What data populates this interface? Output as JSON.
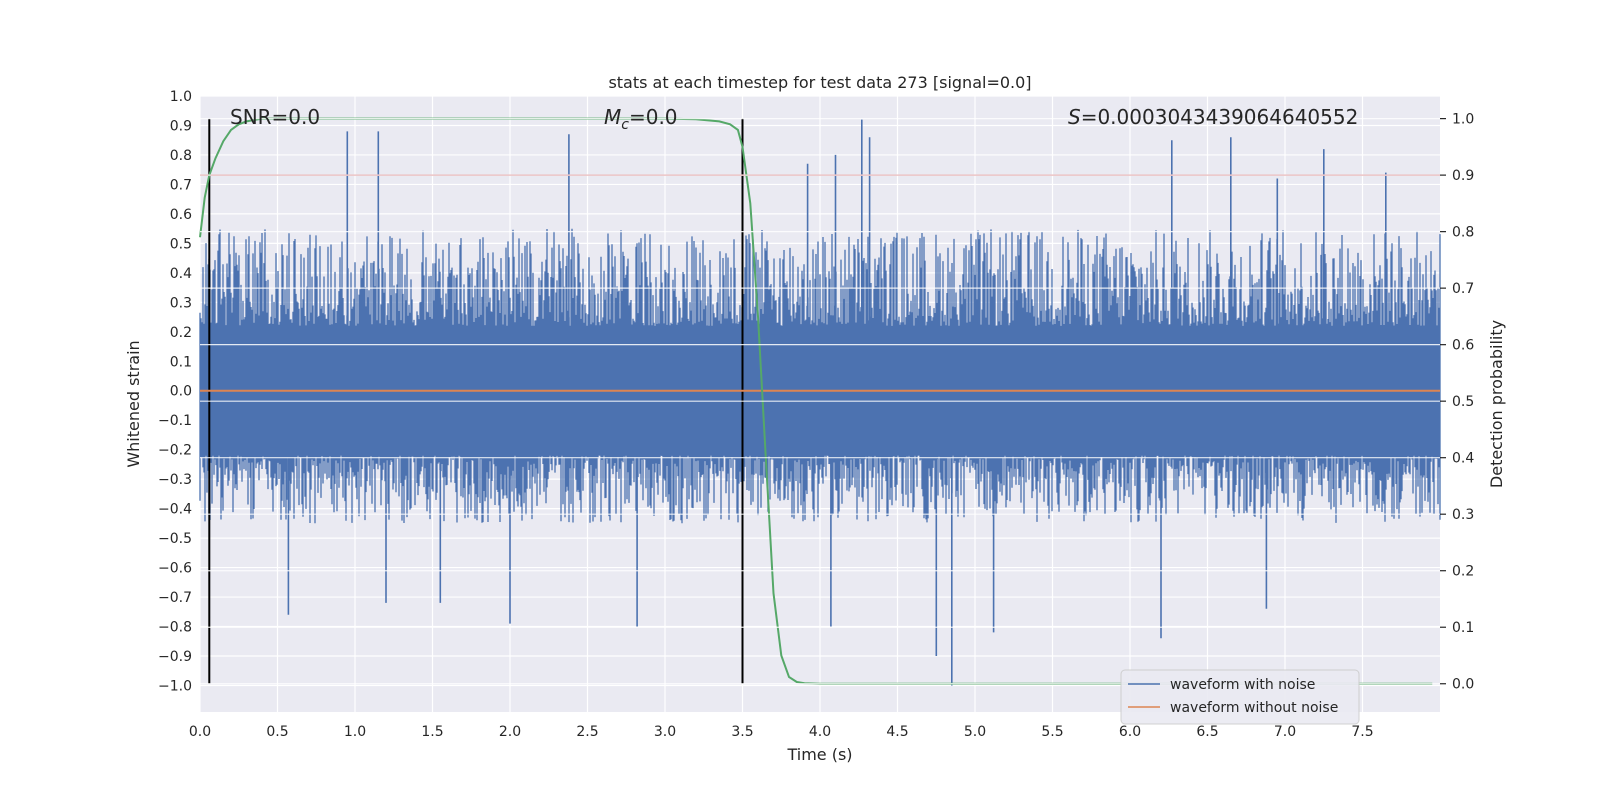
{
  "chart_data": {
    "type": "line",
    "title": "stats at each timestep for test data 273 [signal=0.0]",
    "xlabel": "Time (s)",
    "ylabel": "Whitened strain",
    "ylabel_right": "Detection probability",
    "xlim": [
      0.0,
      8.0
    ],
    "ylim": [
      -1.09,
      1.0
    ],
    "ylim_right": [
      -0.05,
      1.04
    ],
    "x_ticks": [
      "0.0",
      "0.5",
      "1.0",
      "1.5",
      "2.0",
      "2.5",
      "3.0",
      "3.5",
      "4.0",
      "4.5",
      "5.0",
      "5.5",
      "6.0",
      "6.5",
      "7.0",
      "7.5"
    ],
    "x_tick_values": [
      0.0,
      0.5,
      1.0,
      1.5,
      2.0,
      2.5,
      3.0,
      3.5,
      4.0,
      4.5,
      5.0,
      5.5,
      6.0,
      6.5,
      7.0,
      7.5
    ],
    "y_ticks": [
      "1.0",
      "0.9",
      "0.8",
      "0.7",
      "0.6",
      "0.5",
      "0.4",
      "0.3",
      "0.2",
      "0.1",
      "0.0",
      "−0.1",
      "−0.2",
      "−0.3",
      "−0.4",
      "−0.5",
      "−0.6",
      "−0.7",
      "−0.8",
      "−0.9",
      "−1.0"
    ],
    "y_tick_values": [
      1.0,
      0.9,
      0.8,
      0.7,
      0.6,
      0.5,
      0.4,
      0.3,
      0.2,
      0.1,
      0.0,
      -0.1,
      -0.2,
      -0.3,
      -0.4,
      -0.5,
      -0.6,
      -0.7,
      -0.8,
      -0.9,
      -1.0
    ],
    "y2_ticks": [
      "1.0",
      "0.9",
      "0.8",
      "0.7",
      "0.6",
      "0.5",
      "0.4",
      "0.3",
      "0.2",
      "0.1",
      "0.0"
    ],
    "y2_tick_values": [
      1.0,
      0.9,
      0.8,
      0.7,
      0.6,
      0.5,
      0.4,
      0.3,
      0.2,
      0.1,
      0.0
    ],
    "annotations": {
      "snr": "SNR=0.0",
      "mc_symbol": "M",
      "mc_sub": "c",
      "mc_value": "=0.0",
      "s_symbol": "S",
      "s_value": "=0.0003043439064640552"
    },
    "vertical_lines_x": [
      0.06,
      3.5
    ],
    "threshold_y": 0.9,
    "noise_envelope": {
      "typical_max_upper": 0.55,
      "typical_max_lower": -0.45,
      "peaks_upper": [
        {
          "x": 0.95,
          "y": 0.88
        },
        {
          "x": 1.15,
          "y": 0.88
        },
        {
          "x": 2.38,
          "y": 0.87
        },
        {
          "x": 3.92,
          "y": 0.77
        },
        {
          "x": 4.1,
          "y": 0.8
        },
        {
          "x": 4.27,
          "y": 0.92
        },
        {
          "x": 4.32,
          "y": 0.86
        },
        {
          "x": 6.27,
          "y": 0.85
        },
        {
          "x": 6.65,
          "y": 0.86
        },
        {
          "x": 6.95,
          "y": 0.72
        },
        {
          "x": 7.25,
          "y": 0.82
        },
        {
          "x": 7.65,
          "y": 0.74
        }
      ],
      "peaks_lower": [
        {
          "x": 0.57,
          "y": -0.76
        },
        {
          "x": 1.2,
          "y": -0.72
        },
        {
          "x": 1.55,
          "y": -0.72
        },
        {
          "x": 2.0,
          "y": -0.79
        },
        {
          "x": 2.82,
          "y": -0.8
        },
        {
          "x": 4.07,
          "y": -0.8
        },
        {
          "x": 4.75,
          "y": -0.9
        },
        {
          "x": 4.85,
          "y": -1.0
        },
        {
          "x": 5.12,
          "y": -0.82
        },
        {
          "x": 6.2,
          "y": -0.84
        },
        {
          "x": 6.88,
          "y": -0.74
        }
      ]
    },
    "series": [
      {
        "name": "waveform with noise",
        "color": "#4c72b0",
        "axis": "left"
      },
      {
        "name": "waveform without noise",
        "color": "#dd8452",
        "axis": "left",
        "x": [
          0.0,
          8.0
        ],
        "y": [
          0.0,
          0.0
        ]
      },
      {
        "color": "#55a868",
        "axis": "right",
        "x": [
          0.0,
          0.03,
          0.06,
          0.1,
          0.15,
          0.2,
          0.25,
          0.3,
          0.4,
          0.6,
          1.0,
          2.0,
          3.0,
          3.2,
          3.35,
          3.42,
          3.47,
          3.5,
          3.55,
          3.6,
          3.65,
          3.7,
          3.75,
          3.8,
          3.85,
          3.9,
          4.0,
          4.5,
          5.0,
          6.0,
          7.0,
          7.95
        ],
        "y": [
          0.79,
          0.86,
          0.9,
          0.93,
          0.96,
          0.98,
          0.99,
          0.995,
          1.0,
          1.0,
          1.0,
          1.0,
          1.0,
          0.999,
          0.995,
          0.99,
          0.98,
          0.95,
          0.85,
          0.65,
          0.4,
          0.16,
          0.05,
          0.012,
          0.003,
          0.001,
          0.0,
          0.0,
          0.0,
          0.0,
          0.0,
          0.0
        ]
      },
      {
        "color": "#c44e52",
        "axis": "right",
        "x": [
          0.0,
          8.0
        ],
        "y": [
          0.9,
          0.9
        ]
      }
    ],
    "legend": {
      "placement": "lower-right",
      "entries": [
        "waveform with noise",
        "waveform without noise"
      ]
    },
    "grid": true,
    "background": "#eaeaf2"
  }
}
